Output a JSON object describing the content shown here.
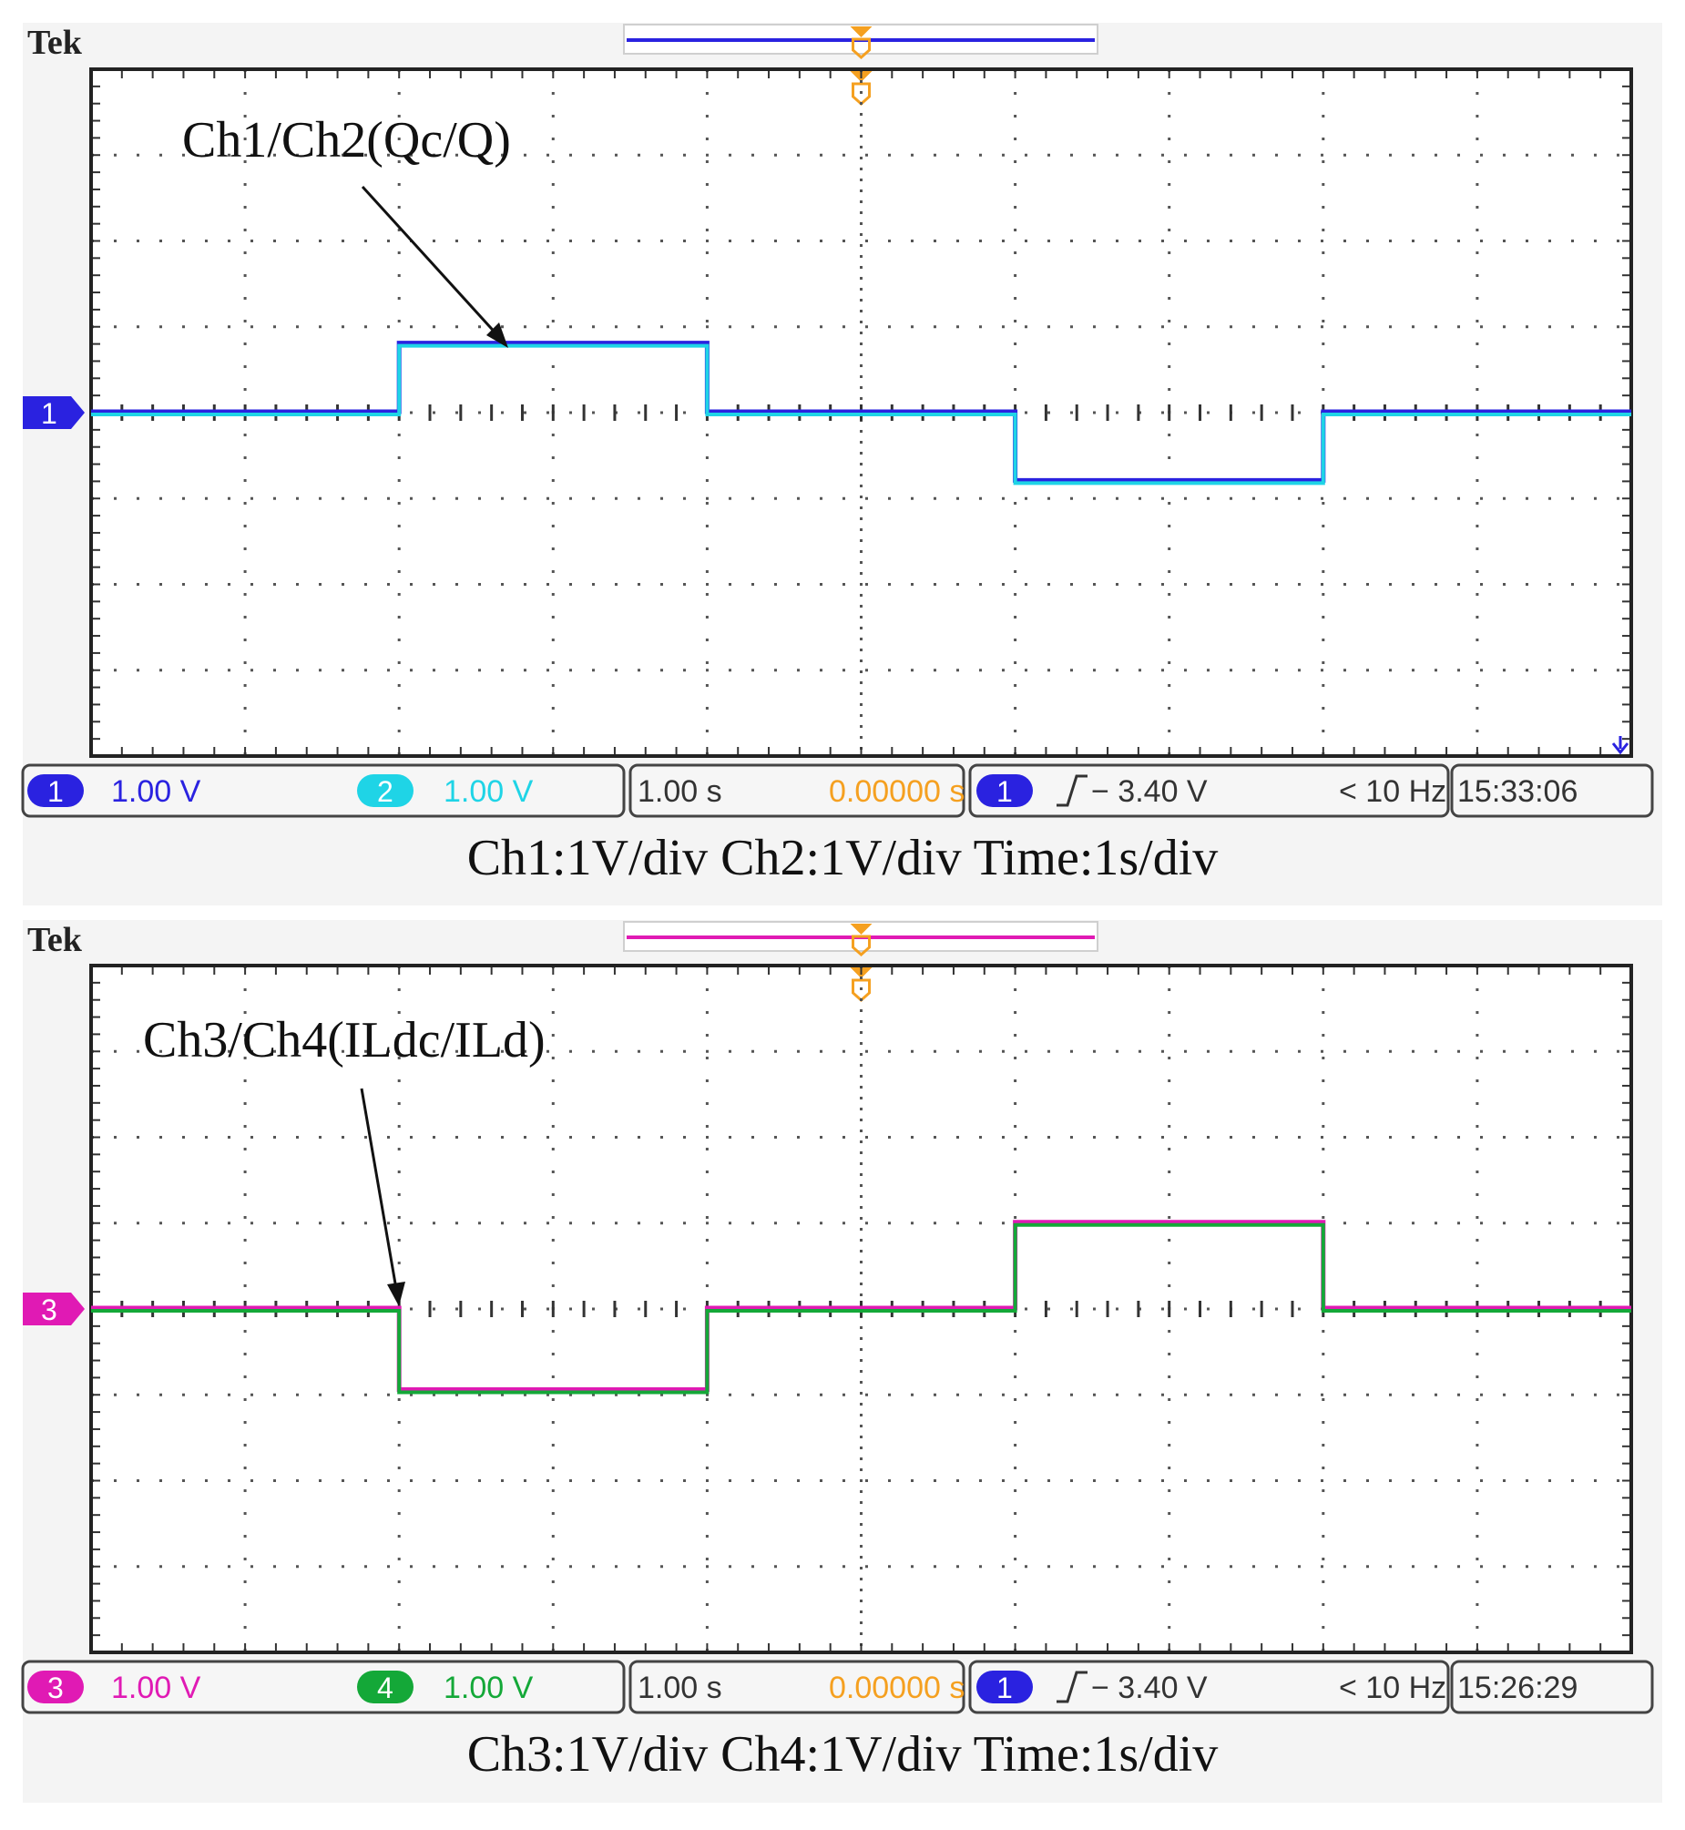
{
  "chart_data": [
    {
      "type": "line",
      "brand": "Tek",
      "annotation": "Ch1/Ch2(Qc/Q)",
      "caption": "Ch1:1V/div Ch2:1V/div Time:1s/div",
      "grid": true,
      "xlim": [
        0,
        10
      ],
      "ylim": [
        -4,
        4
      ],
      "ground_marker": {
        "label": "1",
        "color": "#2a22e0",
        "level": 0
      },
      "series": [
        {
          "channel": "1",
          "color": "#2a22e0",
          "x": [
            0,
            2,
            2,
            4,
            4,
            6,
            6,
            8,
            8,
            10
          ],
          "y": [
            0,
            0,
            0.8,
            0.8,
            0,
            0,
            -0.8,
            -0.8,
            0,
            0
          ]
        },
        {
          "channel": "2",
          "color": "#1fd4e6",
          "x": [
            0,
            2,
            2,
            4,
            4,
            6,
            6,
            8,
            8,
            10
          ],
          "y": [
            0,
            0,
            0.8,
            0.8,
            0,
            0,
            -0.8,
            -0.8,
            0,
            0
          ]
        }
      ],
      "readout": {
        "ch_a": {
          "num": "1",
          "value": "1.00 V",
          "color": "#2a22e0",
          "text_color": "#2a22e0"
        },
        "ch_b": {
          "num": "2",
          "value": "1.00 V",
          "color": "#1fd4e6",
          "text_color": "#1fd4e6"
        },
        "timebase": "1.00 s",
        "delay": "0.00000 s",
        "trigger_ch": "1",
        "trigger_level": "− 3.40 V",
        "frequency": "< 10 Hz",
        "clock": "15:33:06"
      },
      "record_bar_color": "#2a22e0"
    },
    {
      "type": "line",
      "brand": "Tek",
      "annotation": "Ch3/Ch4(ILdc/ILd)",
      "caption": "Ch3:1V/div Ch4:1V/div Time:1s/div",
      "grid": true,
      "xlim": [
        0,
        10
      ],
      "ylim": [
        -4,
        4
      ],
      "ground_marker": {
        "label": "3",
        "color": "#e01ab4",
        "level": 0
      },
      "series": [
        {
          "channel": "3",
          "color": "#e01ab4",
          "x": [
            0,
            2,
            2,
            4,
            4,
            6,
            6,
            8,
            8,
            10
          ],
          "y": [
            0,
            0,
            -0.95,
            -0.95,
            0,
            0,
            1,
            1,
            0,
            0
          ]
        },
        {
          "channel": "4",
          "color": "#14a838",
          "x": [
            0,
            2,
            2,
            4,
            4,
            6,
            6,
            8,
            8,
            10
          ],
          "y": [
            0,
            0,
            -0.95,
            -0.95,
            0,
            0,
            1,
            1,
            0,
            0
          ]
        }
      ],
      "readout": {
        "ch_a": {
          "num": "3",
          "value": "1.00 V",
          "color": "#e01ab4",
          "text_color": "#e01ab4"
        },
        "ch_b": {
          "num": "4",
          "value": "1.00 V",
          "color": "#14a838",
          "text_color": "#14a838"
        },
        "timebase": "1.00 s",
        "delay": "0.00000 s",
        "trigger_ch": "1",
        "trigger_level": "− 3.40 V",
        "frequency": "< 10 Hz",
        "clock": "15:26:29"
      },
      "record_bar_color": "#e01ab4"
    }
  ],
  "colors": {
    "trigger_orange": "#f5a020",
    "delay_orange": "#f5a020",
    "trigger_ch_badge": "#2a22e0"
  }
}
